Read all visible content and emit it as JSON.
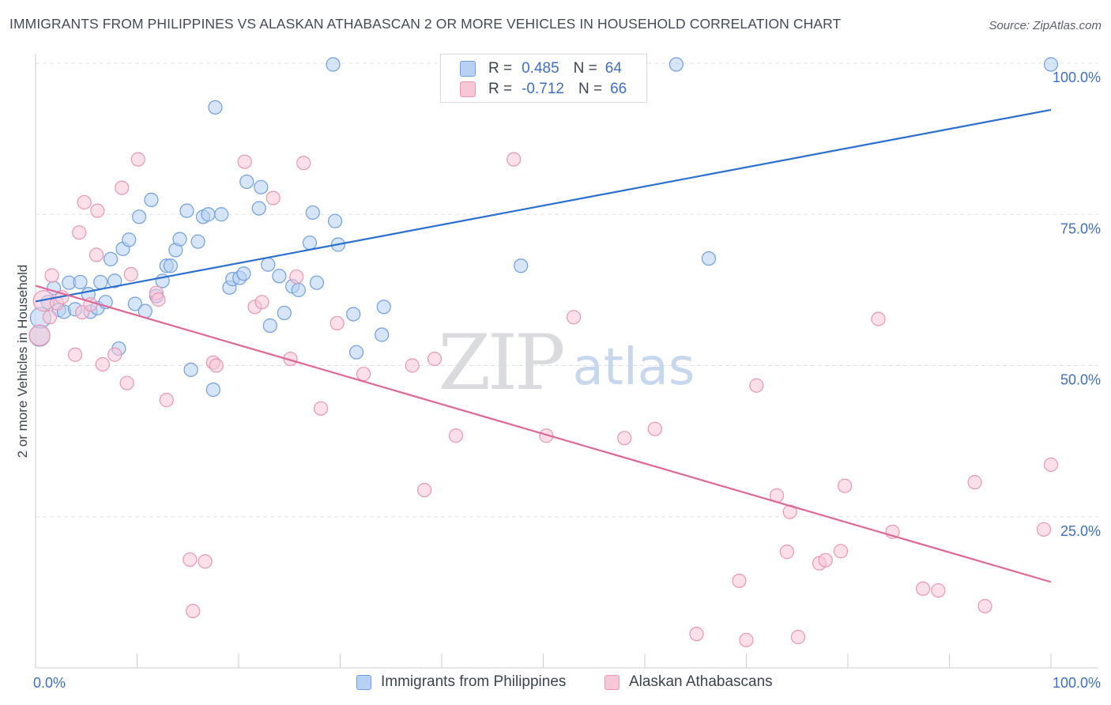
{
  "header": {
    "title": "IMMIGRANTS FROM PHILIPPINES VS ALASKAN ATHABASCAN 2 OR MORE VEHICLES IN HOUSEHOLD CORRELATION CHART",
    "source": "Source: ZipAtlas.com"
  },
  "watermark": {
    "zip": "ZIP",
    "atlas": "atlas"
  },
  "stats_legend": {
    "rows": [
      {
        "r_label": "R =",
        "r_value": "0.485",
        "n_label": "N =",
        "n_value": "64"
      },
      {
        "r_label": "R =",
        "r_value": "-0.712",
        "n_label": "N =",
        "n_value": "66"
      }
    ]
  },
  "chart_data": {
    "type": "scatter",
    "ylabel": "2 or more Vehicles in Household",
    "xlim": [
      0,
      100
    ],
    "ylim": [
      0,
      100
    ],
    "x_tick_labels": [
      "0.0%",
      "100.0%"
    ],
    "y_tick_labels": [
      "25.0%",
      "50.0%",
      "75.0%",
      "100.0%"
    ],
    "y_tick_values": [
      25,
      50,
      75,
      100
    ],
    "grid": true,
    "legend_position": "top-center",
    "series": [
      {
        "name": "Immigrants from Philippines",
        "color": "#6f9fe0",
        "fill": "#b7d0f3",
        "line_color": "#2a6fd1",
        "trend": {
          "x": [
            0,
            100
          ],
          "y": [
            60.6,
            92.3
          ]
        },
        "points": [
          [
            0.4,
            54.9
          ],
          [
            0.5,
            57.9
          ],
          [
            1.2,
            60.5
          ],
          [
            1.8,
            62.8
          ],
          [
            2.3,
            59.2
          ],
          [
            2.8,
            58.9
          ],
          [
            3.3,
            63.7
          ],
          [
            3.9,
            59.3
          ],
          [
            4.4,
            63.8
          ],
          [
            5.2,
            61.8
          ],
          [
            5.4,
            58.9
          ],
          [
            6.1,
            59.5
          ],
          [
            6.4,
            63.8
          ],
          [
            6.9,
            60.5
          ],
          [
            7.4,
            67.6
          ],
          [
            7.8,
            64.0
          ],
          [
            8.2,
            52.8
          ],
          [
            8.6,
            69.3
          ],
          [
            9.2,
            70.8
          ],
          [
            9.8,
            60.2
          ],
          [
            10.2,
            74.6
          ],
          [
            10.8,
            59.0
          ],
          [
            11.4,
            77.4
          ],
          [
            11.9,
            61.5
          ],
          [
            12.5,
            64.0
          ],
          [
            12.9,
            66.5
          ],
          [
            13.3,
            66.5
          ],
          [
            13.8,
            69.1
          ],
          [
            14.2,
            70.9
          ],
          [
            14.9,
            75.6
          ],
          [
            15.3,
            49.3
          ],
          [
            16.0,
            70.5
          ],
          [
            16.5,
            74.6
          ],
          [
            17.0,
            75.0
          ],
          [
            17.5,
            46.0
          ],
          [
            17.7,
            92.7
          ],
          [
            18.3,
            75.0
          ],
          [
            19.1,
            62.9
          ],
          [
            19.4,
            64.3
          ],
          [
            20.1,
            64.5
          ],
          [
            20.5,
            65.2
          ],
          [
            20.8,
            80.4
          ],
          [
            22.0,
            76.0
          ],
          [
            22.2,
            79.5
          ],
          [
            22.9,
            66.7
          ],
          [
            23.1,
            56.6
          ],
          [
            24.0,
            64.8
          ],
          [
            24.5,
            58.7
          ],
          [
            25.3,
            63.1
          ],
          [
            25.9,
            62.5
          ],
          [
            27.0,
            70.3
          ],
          [
            27.3,
            75.3
          ],
          [
            27.7,
            63.7
          ],
          [
            29.3,
            99.8
          ],
          [
            29.5,
            73.9
          ],
          [
            29.8,
            70.0
          ],
          [
            31.3,
            58.5
          ],
          [
            31.6,
            52.2
          ],
          [
            34.1,
            55.1
          ],
          [
            34.3,
            59.7
          ],
          [
            47.8,
            66.5
          ],
          [
            63.1,
            99.8
          ],
          [
            66.3,
            67.7
          ],
          [
            100.0,
            99.8
          ]
        ]
      },
      {
        "name": "Alaskan Athabascans",
        "color": "#ea95b3",
        "fill": "#f7c6d7",
        "line_color": "#df6797",
        "trend": {
          "x": [
            0,
            100
          ],
          "y": [
            63.2,
            14.2
          ]
        },
        "points": [
          [
            0.4,
            55.0
          ],
          [
            0.8,
            60.7
          ],
          [
            1.4,
            58.0
          ],
          [
            1.6,
            64.9
          ],
          [
            2.1,
            60.3
          ],
          [
            2.6,
            61.3
          ],
          [
            3.9,
            51.8
          ],
          [
            4.3,
            72.0
          ],
          [
            4.6,
            58.8
          ],
          [
            4.8,
            77.0
          ],
          [
            5.4,
            60.1
          ],
          [
            6.0,
            68.3
          ],
          [
            6.1,
            75.6
          ],
          [
            6.6,
            50.2
          ],
          [
            7.8,
            51.8
          ],
          [
            8.5,
            79.4
          ],
          [
            9.0,
            47.1
          ],
          [
            9.4,
            65.1
          ],
          [
            10.1,
            84.1
          ],
          [
            11.9,
            62.0
          ],
          [
            12.1,
            60.9
          ],
          [
            12.9,
            44.3
          ],
          [
            15.2,
            17.9
          ],
          [
            15.5,
            9.4
          ],
          [
            16.7,
            17.6
          ],
          [
            17.5,
            50.5
          ],
          [
            17.8,
            50.0
          ],
          [
            20.6,
            83.7
          ],
          [
            21.6,
            59.7
          ],
          [
            22.3,
            60.5
          ],
          [
            23.4,
            77.7
          ],
          [
            25.1,
            51.1
          ],
          [
            25.7,
            64.7
          ],
          [
            26.4,
            83.5
          ],
          [
            28.1,
            42.9
          ],
          [
            29.7,
            57.0
          ],
          [
            32.3,
            48.6
          ],
          [
            37.1,
            50.0
          ],
          [
            38.3,
            29.4
          ],
          [
            39.3,
            51.1
          ],
          [
            41.4,
            38.4
          ],
          [
            47.1,
            84.1
          ],
          [
            50.3,
            38.4
          ],
          [
            53.0,
            58.0
          ],
          [
            58.0,
            38.0
          ],
          [
            61.0,
            39.5
          ],
          [
            65.1,
            5.6
          ],
          [
            69.3,
            14.4
          ],
          [
            70.0,
            4.6
          ],
          [
            71.0,
            46.7
          ],
          [
            73.0,
            28.5
          ],
          [
            74.0,
            19.2
          ],
          [
            74.3,
            25.8
          ],
          [
            75.1,
            5.1
          ],
          [
            77.2,
            17.3
          ],
          [
            77.8,
            17.8
          ],
          [
            79.3,
            19.3
          ],
          [
            79.7,
            30.1
          ],
          [
            83.0,
            57.7
          ],
          [
            84.4,
            22.5
          ],
          [
            87.4,
            13.1
          ],
          [
            88.9,
            12.8
          ],
          [
            92.5,
            30.7
          ],
          [
            93.5,
            10.2
          ],
          [
            99.3,
            22.9
          ],
          [
            100.0,
            33.6
          ]
        ]
      }
    ]
  }
}
